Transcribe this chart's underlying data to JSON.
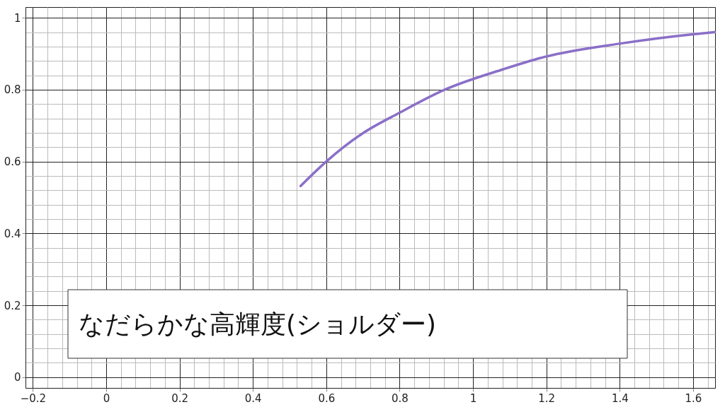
{
  "chart_data": {
    "type": "line",
    "x": [
      0.53,
      0.6,
      0.697,
      0.8,
      0.923,
      1.083,
      1.198,
      1.398,
      1.596,
      1.659
    ],
    "series": [
      {
        "color": "#8a6fc8",
        "values": [
          0.532,
          0.6,
          0.677,
          0.736,
          0.8,
          0.857,
          0.892,
          0.928,
          0.954,
          0.96
        ]
      }
    ],
    "xlim": [
      -0.22,
      1.66
    ],
    "ylim": [
      -0.03,
      1.03
    ],
    "xticks": [
      -0.2,
      0,
      0.2,
      0.4,
      0.6,
      0.8,
      1,
      1.2,
      1.4,
      1.6
    ],
    "yticks": [
      0,
      0.2,
      0.4,
      0.6,
      0.8,
      1
    ],
    "grid": true,
    "marker": "none",
    "line_style": "solid",
    "annotations": [
      "なだらかな高輝度(ショルダー)"
    ]
  }
}
